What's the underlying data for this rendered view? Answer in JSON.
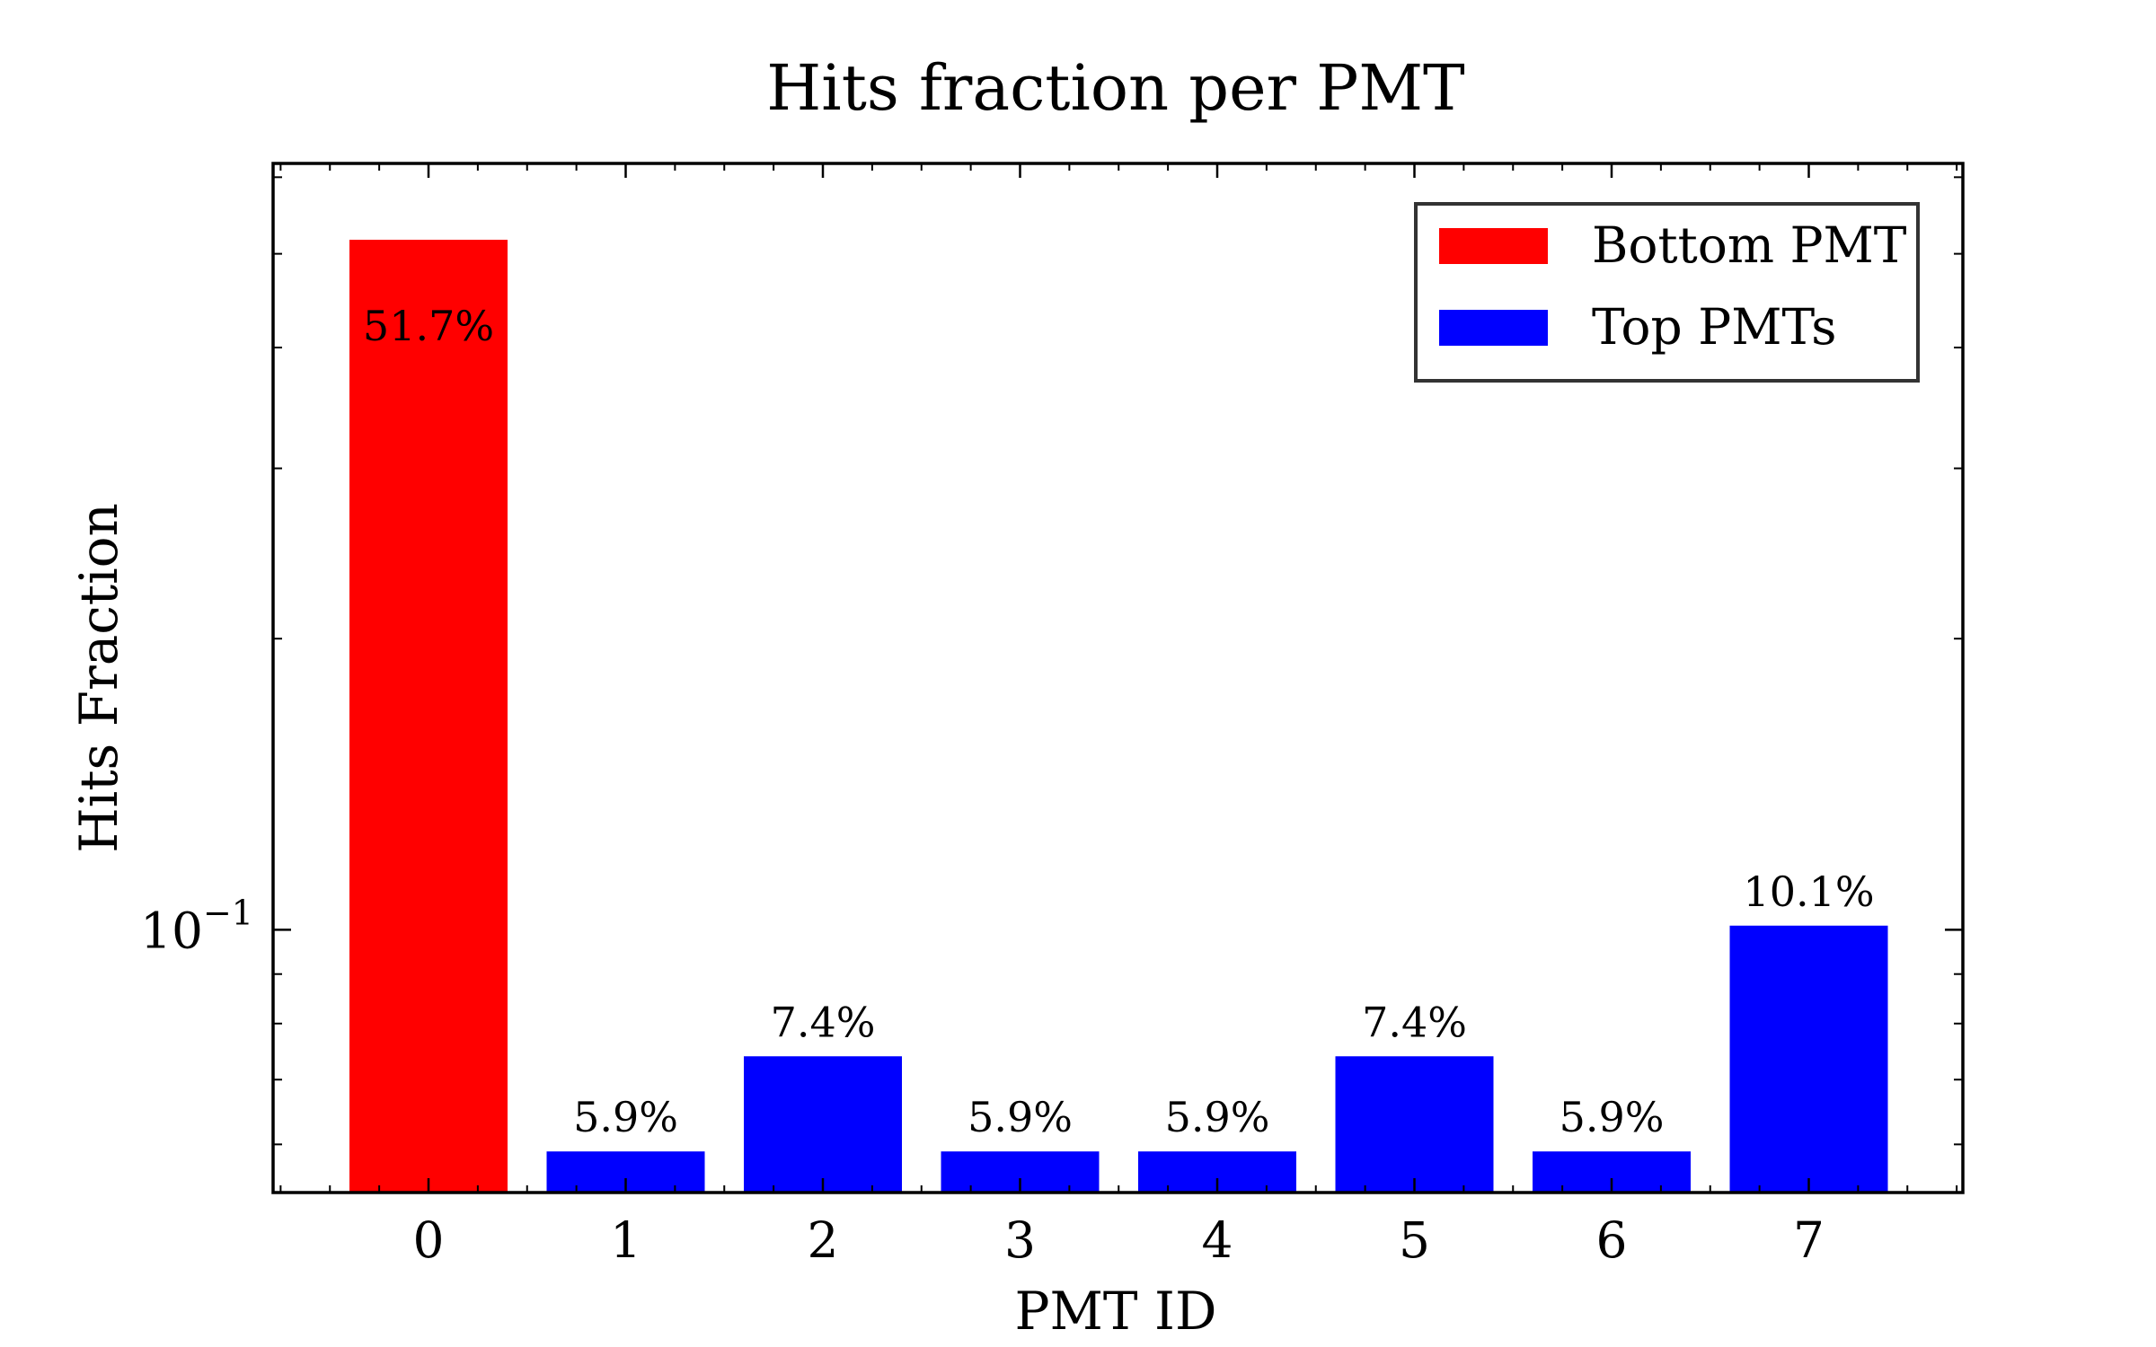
{
  "chart_data": {
    "type": "bar",
    "title": "Hits fraction per PMT",
    "xlabel": "PMT ID",
    "ylabel": "Hits Fraction",
    "yscale": "log",
    "ylim": [
      0.0535,
      0.62
    ],
    "y_major_ticks": [
      {
        "value": 0.1,
        "base": "10",
        "exp": "−1"
      }
    ],
    "y_minor_ticks": [
      0.06,
      0.07,
      0.08,
      0.09,
      0.2,
      0.3,
      0.4,
      0.5,
      0.6
    ],
    "grid": false,
    "legend_position": "top-right",
    "categories": [
      "0",
      "1",
      "2",
      "3",
      "4",
      "5",
      "6",
      "7"
    ],
    "values": [
      0.517,
      0.059,
      0.074,
      0.059,
      0.059,
      0.074,
      0.059,
      0.101
    ],
    "labels": [
      "51.7%",
      "5.9%",
      "7.4%",
      "5.9%",
      "5.9%",
      "7.4%",
      "5.9%",
      "10.1%"
    ],
    "groups": [
      "bottom",
      "top",
      "top",
      "top",
      "top",
      "top",
      "top",
      "top"
    ],
    "series": [
      {
        "name": "Bottom PMT",
        "key": "bottom",
        "color": "#ff0000"
      },
      {
        "name": "Top PMTs",
        "key": "top",
        "color": "#0000ff"
      }
    ]
  }
}
